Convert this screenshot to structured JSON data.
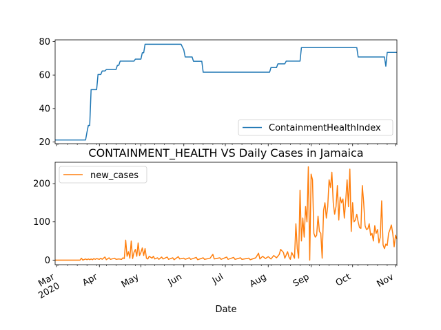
{
  "chart_data": [
    {
      "type": "line",
      "title": "",
      "xlabel": "",
      "ylabel": "",
      "ylim": [
        19,
        81
      ],
      "xlim": [
        "2020-02-29",
        "2020-11-02"
      ],
      "yticks": [
        20,
        40,
        60,
        80
      ],
      "ytick_labels": [
        "20",
        "40",
        "60",
        "80"
      ],
      "legend_position": "lower right",
      "grid": false,
      "series": [
        {
          "name": "ContainmentHealthIndex",
          "color": "#1f77b4",
          "step": true,
          "points": [
            [
              "2020-02-29",
              21.2
            ],
            [
              "2020-03-22",
              21.2
            ],
            [
              "2020-03-23",
              25.8
            ],
            [
              "2020-03-24",
              29.9
            ],
            [
              "2020-03-25",
              29.9
            ],
            [
              "2020-03-26",
              51.3
            ],
            [
              "2020-03-30",
              51.3
            ],
            [
              "2020-03-31",
              60.3
            ],
            [
              "2020-04-02",
              60.3
            ],
            [
              "2020-04-03",
              62.4
            ],
            [
              "2020-04-05",
              62.4
            ],
            [
              "2020-04-06",
              63.3
            ],
            [
              "2020-04-13",
              63.3
            ],
            [
              "2020-04-14",
              65.8
            ],
            [
              "2020-04-15",
              65.8
            ],
            [
              "2020-04-16",
              68.3
            ],
            [
              "2020-04-26",
              68.3
            ],
            [
              "2020-04-27",
              69.5
            ],
            [
              "2020-05-01",
              69.5
            ],
            [
              "2020-05-02",
              73.3
            ],
            [
              "2020-05-03",
              73.3
            ],
            [
              "2020-05-04",
              78.4
            ],
            [
              "2020-05-30",
              78.4
            ],
            [
              "2020-06-01",
              75.0
            ],
            [
              "2020-06-02",
              70.8
            ],
            [
              "2020-06-07",
              70.8
            ],
            [
              "2020-06-08",
              68.2
            ],
            [
              "2020-06-14",
              68.2
            ],
            [
              "2020-06-15",
              61.7
            ],
            [
              "2020-08-02",
              61.7
            ],
            [
              "2020-08-03",
              64.5
            ],
            [
              "2020-08-07",
              64.5
            ],
            [
              "2020-08-08",
              66.7
            ],
            [
              "2020-08-13",
              66.7
            ],
            [
              "2020-08-14",
              68.3
            ],
            [
              "2020-08-24",
              68.3
            ],
            [
              "2020-08-25",
              76.4
            ],
            [
              "2020-10-04",
              76.4
            ],
            [
              "2020-10-05",
              70.8
            ],
            [
              "2020-10-24",
              70.8
            ],
            [
              "2020-10-25",
              65.3
            ],
            [
              "2020-10-26",
              73.5
            ],
            [
              "2020-11-02",
              73.5
            ]
          ]
        }
      ]
    },
    {
      "type": "line",
      "title": "CONTAINMENT_HEALTH VS Daily Cases in Jamaica",
      "xlabel": "Date",
      "ylabel": "",
      "ylim": [
        -12,
        256
      ],
      "xlim": [
        "2020-02-29",
        "2020-11-02"
      ],
      "yticks": [
        0,
        100,
        200
      ],
      "ytick_labels": [
        "0",
        "100",
        "200"
      ],
      "xtick_dates": [
        "2020-03-01",
        "2020-04-01",
        "2020-05-01",
        "2020-06-01",
        "2020-07-01",
        "2020-08-01",
        "2020-09-01",
        "2020-10-01",
        "2020-11-01"
      ],
      "xtick_labels": [
        "Mar\n2020",
        "Apr",
        "May",
        "Jun",
        "Jul",
        "Aug",
        "Sep",
        "Oct",
        "Nov"
      ],
      "legend_position": "upper left",
      "grid": false,
      "series": [
        {
          "name": "new_cases",
          "color": "#ff7f0e",
          "points": [
            [
              "2020-02-29",
              0
            ],
            [
              "2020-03-10",
              0
            ],
            [
              "2020-03-18",
              0
            ],
            [
              "2020-03-19",
              5
            ],
            [
              "2020-03-20",
              0
            ],
            [
              "2020-03-22",
              3
            ],
            [
              "2020-03-23",
              1
            ],
            [
              "2020-03-24",
              3
            ],
            [
              "2020-03-25",
              1
            ],
            [
              "2020-03-26",
              3
            ],
            [
              "2020-03-27",
              1
            ],
            [
              "2020-03-28",
              4
            ],
            [
              "2020-03-29",
              2
            ],
            [
              "2020-03-30",
              4
            ],
            [
              "2020-04-01",
              2
            ],
            [
              "2020-04-02",
              5
            ],
            [
              "2020-04-03",
              2
            ],
            [
              "2020-04-05",
              8
            ],
            [
              "2020-04-06",
              1
            ],
            [
              "2020-04-08",
              6
            ],
            [
              "2020-04-09",
              2
            ],
            [
              "2020-04-10",
              3
            ],
            [
              "2020-04-12",
              5
            ],
            [
              "2020-04-13",
              2
            ],
            [
              "2020-04-15",
              3
            ],
            [
              "2020-04-17",
              2
            ],
            [
              "2020-04-18",
              6
            ],
            [
              "2020-04-19",
              4
            ],
            [
              "2020-04-20",
              52
            ],
            [
              "2020-04-21",
              10
            ],
            [
              "2020-04-22",
              22
            ],
            [
              "2020-04-23",
              5
            ],
            [
              "2020-04-24",
              50
            ],
            [
              "2020-04-25",
              4
            ],
            [
              "2020-04-26",
              20
            ],
            [
              "2020-04-27",
              28
            ],
            [
              "2020-04-28",
              10
            ],
            [
              "2020-04-29",
              45
            ],
            [
              "2020-04-30",
              12
            ],
            [
              "2020-05-01",
              20
            ],
            [
              "2020-05-02",
              32
            ],
            [
              "2020-05-03",
              12
            ],
            [
              "2020-05-04",
              30
            ],
            [
              "2020-05-05",
              5
            ],
            [
              "2020-05-06",
              3
            ],
            [
              "2020-05-07",
              10
            ],
            [
              "2020-05-09",
              5
            ],
            [
              "2020-05-10",
              10
            ],
            [
              "2020-05-11",
              3
            ],
            [
              "2020-05-13",
              6
            ],
            [
              "2020-05-14",
              2
            ],
            [
              "2020-05-16",
              8
            ],
            [
              "2020-05-17",
              3
            ],
            [
              "2020-05-20",
              8
            ],
            [
              "2020-05-21",
              2
            ],
            [
              "2020-05-24",
              6
            ],
            [
              "2020-05-25",
              1
            ],
            [
              "2020-05-28",
              9
            ],
            [
              "2020-05-29",
              3
            ],
            [
              "2020-06-01",
              5
            ],
            [
              "2020-06-02",
              2
            ],
            [
              "2020-06-05",
              6
            ],
            [
              "2020-06-06",
              2
            ],
            [
              "2020-06-10",
              7
            ],
            [
              "2020-06-11",
              1
            ],
            [
              "2020-06-15",
              6
            ],
            [
              "2020-06-16",
              2
            ],
            [
              "2020-06-20",
              5
            ],
            [
              "2020-06-22",
              15
            ],
            [
              "2020-06-23",
              3
            ],
            [
              "2020-06-27",
              6
            ],
            [
              "2020-06-28",
              2
            ],
            [
              "2020-07-02",
              8
            ],
            [
              "2020-07-03",
              2
            ],
            [
              "2020-07-07",
              7
            ],
            [
              "2020-07-08",
              2
            ],
            [
              "2020-07-12",
              6
            ],
            [
              "2020-07-13",
              2
            ],
            [
              "2020-07-18",
              5
            ],
            [
              "2020-07-19",
              1
            ],
            [
              "2020-07-23",
              6
            ],
            [
              "2020-07-25",
              18
            ],
            [
              "2020-07-26",
              3
            ],
            [
              "2020-07-28",
              10
            ],
            [
              "2020-07-30",
              4
            ],
            [
              "2020-08-01",
              9
            ],
            [
              "2020-08-03",
              3
            ],
            [
              "2020-08-05",
              12
            ],
            [
              "2020-08-07",
              6
            ],
            [
              "2020-08-09",
              15
            ],
            [
              "2020-08-10",
              28
            ],
            [
              "2020-08-12",
              20
            ],
            [
              "2020-08-13",
              5
            ],
            [
              "2020-08-15",
              22
            ],
            [
              "2020-08-16",
              8
            ],
            [
              "2020-08-17",
              2
            ],
            [
              "2020-08-18",
              20
            ],
            [
              "2020-08-20",
              5
            ],
            [
              "2020-08-21",
              95
            ],
            [
              "2020-08-22",
              30
            ],
            [
              "2020-08-23",
              5
            ],
            [
              "2020-08-24",
              183
            ],
            [
              "2020-08-25",
              50
            ],
            [
              "2020-08-26",
              110
            ],
            [
              "2020-08-27",
              60
            ],
            [
              "2020-08-28",
              140
            ],
            [
              "2020-08-29",
              100
            ],
            [
              "2020-08-30",
              244
            ],
            [
              "2020-08-31",
              0
            ],
            [
              "2020-09-01",
              225
            ],
            [
              "2020-09-02",
              210
            ],
            [
              "2020-09-03",
              70
            ],
            [
              "2020-09-04",
              60
            ],
            [
              "2020-09-05",
              65
            ],
            [
              "2020-09-06",
              115
            ],
            [
              "2020-09-07",
              75
            ],
            [
              "2020-09-08",
              70
            ],
            [
              "2020-09-09",
              5
            ],
            [
              "2020-09-10",
              130
            ],
            [
              "2020-09-11",
              150
            ],
            [
              "2020-09-12",
              110
            ],
            [
              "2020-09-13",
              140
            ],
            [
              "2020-09-14",
              210
            ],
            [
              "2020-09-15",
              190
            ],
            [
              "2020-09-16",
              230
            ],
            [
              "2020-09-17",
              150
            ],
            [
              "2020-09-18",
              120
            ],
            [
              "2020-09-19",
              140
            ],
            [
              "2020-09-20",
              195
            ],
            [
              "2020-09-21",
              105
            ],
            [
              "2020-09-22",
              165
            ],
            [
              "2020-09-23",
              150
            ],
            [
              "2020-09-24",
              160
            ],
            [
              "2020-09-25",
              110
            ],
            [
              "2020-09-26",
              155
            ],
            [
              "2020-09-27",
              210
            ],
            [
              "2020-09-28",
              140
            ],
            [
              "2020-09-29",
              238
            ],
            [
              "2020-09-30",
              75
            ],
            [
              "2020-10-01",
              150
            ],
            [
              "2020-10-02",
              100
            ],
            [
              "2020-10-03",
              105
            ],
            [
              "2020-10-04",
              120
            ],
            [
              "2020-10-05",
              100
            ],
            [
              "2020-10-06",
              85
            ],
            [
              "2020-10-07",
              83
            ],
            [
              "2020-10-08",
              195
            ],
            [
              "2020-10-09",
              150
            ],
            [
              "2020-10-10",
              90
            ],
            [
              "2020-10-11",
              80
            ],
            [
              "2020-10-12",
              82
            ],
            [
              "2020-10-13",
              95
            ],
            [
              "2020-10-14",
              65
            ],
            [
              "2020-10-15",
              70
            ],
            [
              "2020-10-16",
              50
            ],
            [
              "2020-10-17",
              90
            ],
            [
              "2020-10-18",
              70
            ],
            [
              "2020-10-19",
              80
            ],
            [
              "2020-10-20",
              45
            ],
            [
              "2020-10-21",
              60
            ],
            [
              "2020-10-22",
              155
            ],
            [
              "2020-10-23",
              40
            ],
            [
              "2020-10-24",
              30
            ],
            [
              "2020-10-25",
              42
            ],
            [
              "2020-10-26",
              38
            ],
            [
              "2020-10-27",
              70
            ],
            [
              "2020-10-28",
              80
            ],
            [
              "2020-10-29",
              92
            ],
            [
              "2020-10-30",
              70
            ],
            [
              "2020-10-31",
              35
            ],
            [
              "2020-11-01",
              65
            ],
            [
              "2020-11-02",
              55
            ]
          ]
        }
      ]
    }
  ]
}
